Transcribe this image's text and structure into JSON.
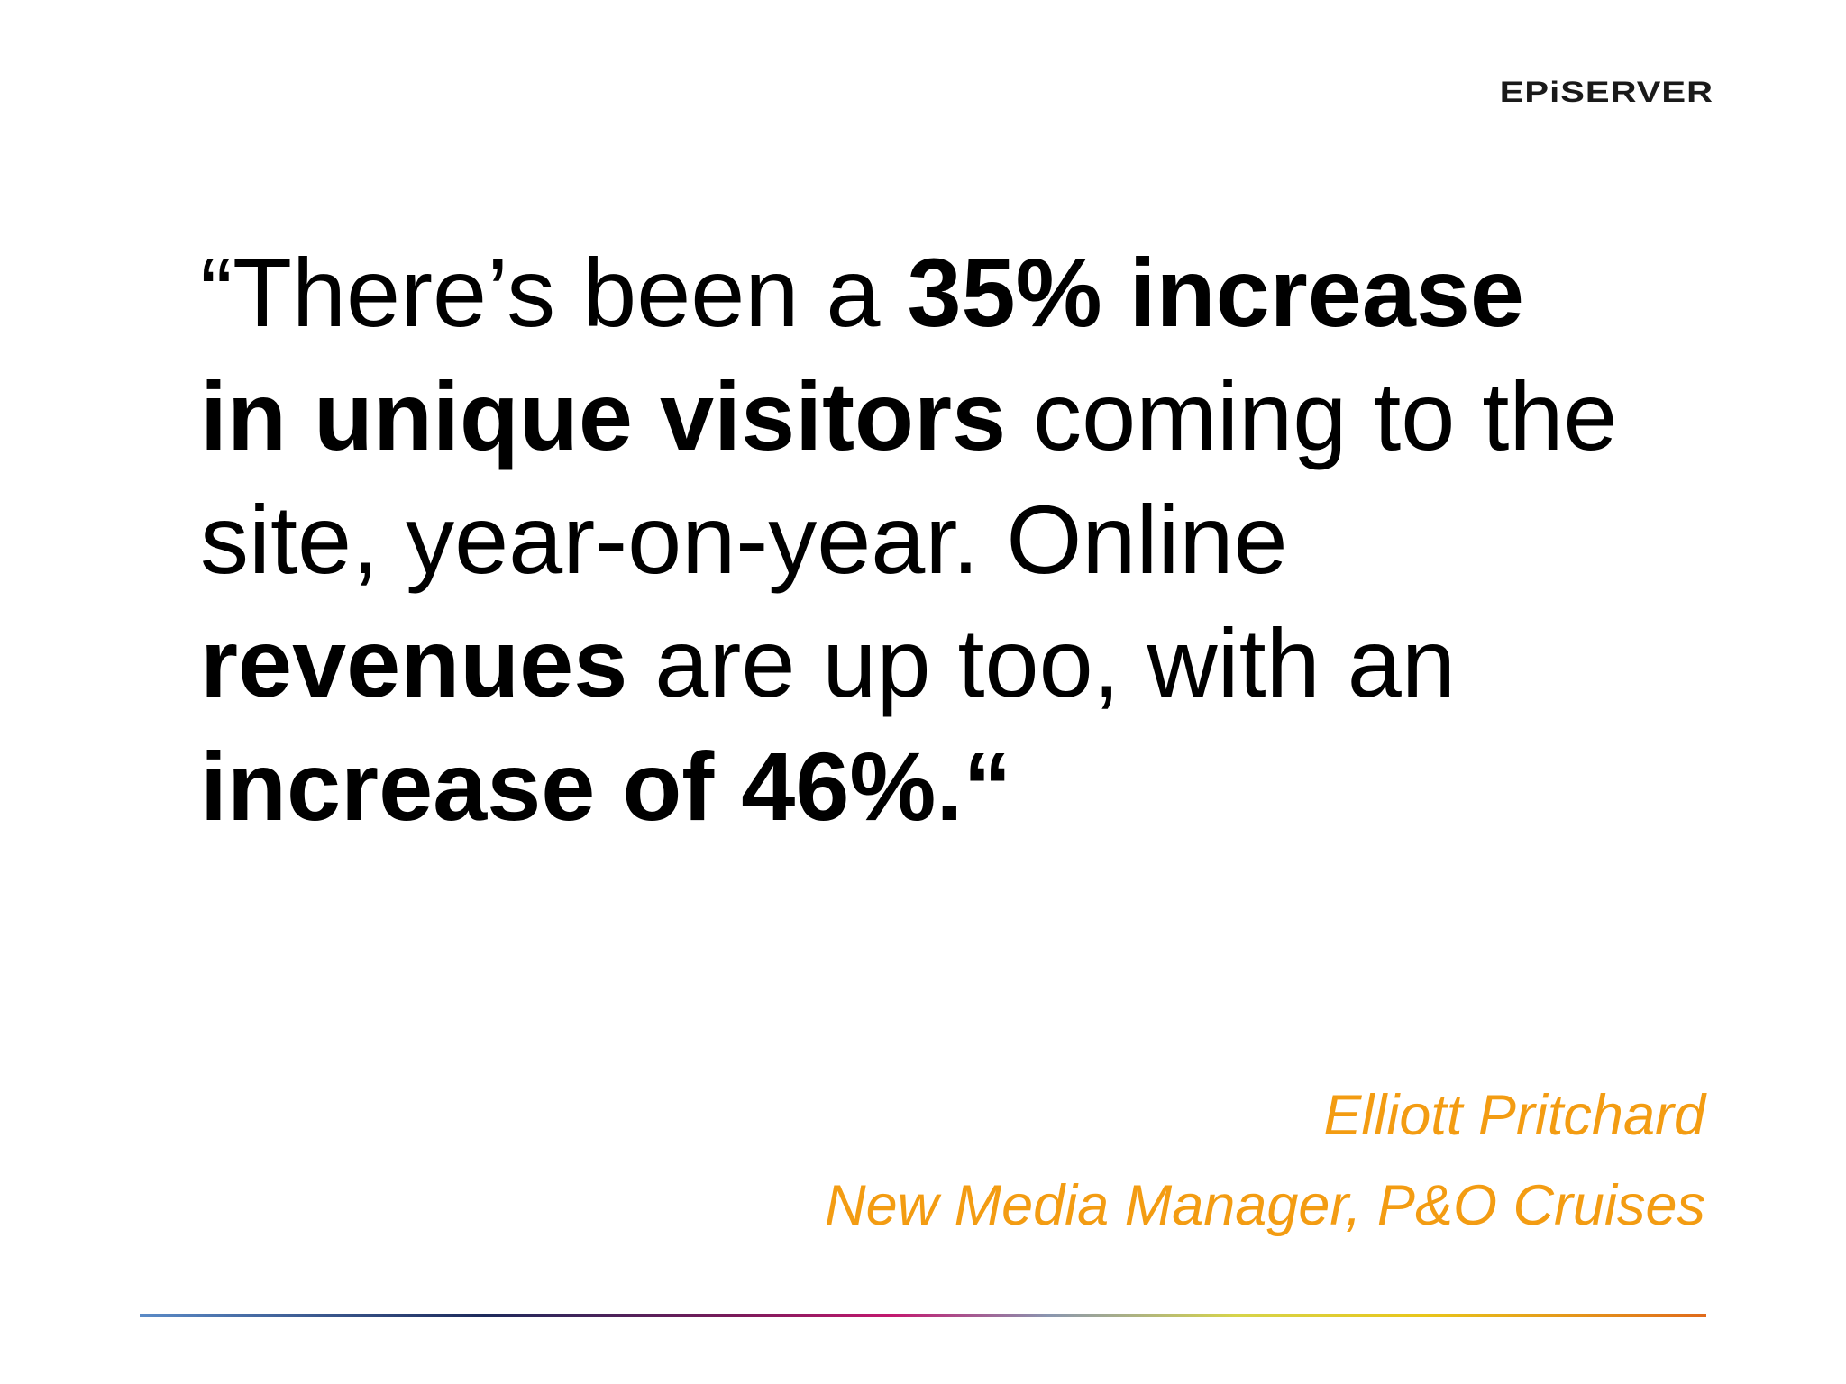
{
  "logo": {
    "text": "EPiSERVER"
  },
  "quote": {
    "lines": [
      {
        "regular_1": "“There’s been a ",
        "bold_1": "35% increase",
        "regular_2": ""
      },
      {
        "regular_1": "",
        "bold_1": "in unique visitors",
        "regular_2": " coming to the"
      },
      {
        "regular_1": "site, year-on-year. Online",
        "bold_1": "",
        "regular_2": ""
      },
      {
        "regular_1": "",
        "bold_1": "revenues",
        "regular_2": " are up too, with an"
      },
      {
        "regular_1": "",
        "bold_1": "increase of 46%.“",
        "regular_2": ""
      }
    ]
  },
  "attribution": {
    "name": "Elliott Pritchard",
    "title": "New Media Manager, P&O Cruises"
  },
  "colors": {
    "attribution": "#f39c12",
    "text": "#000000",
    "background": "#ffffff"
  }
}
